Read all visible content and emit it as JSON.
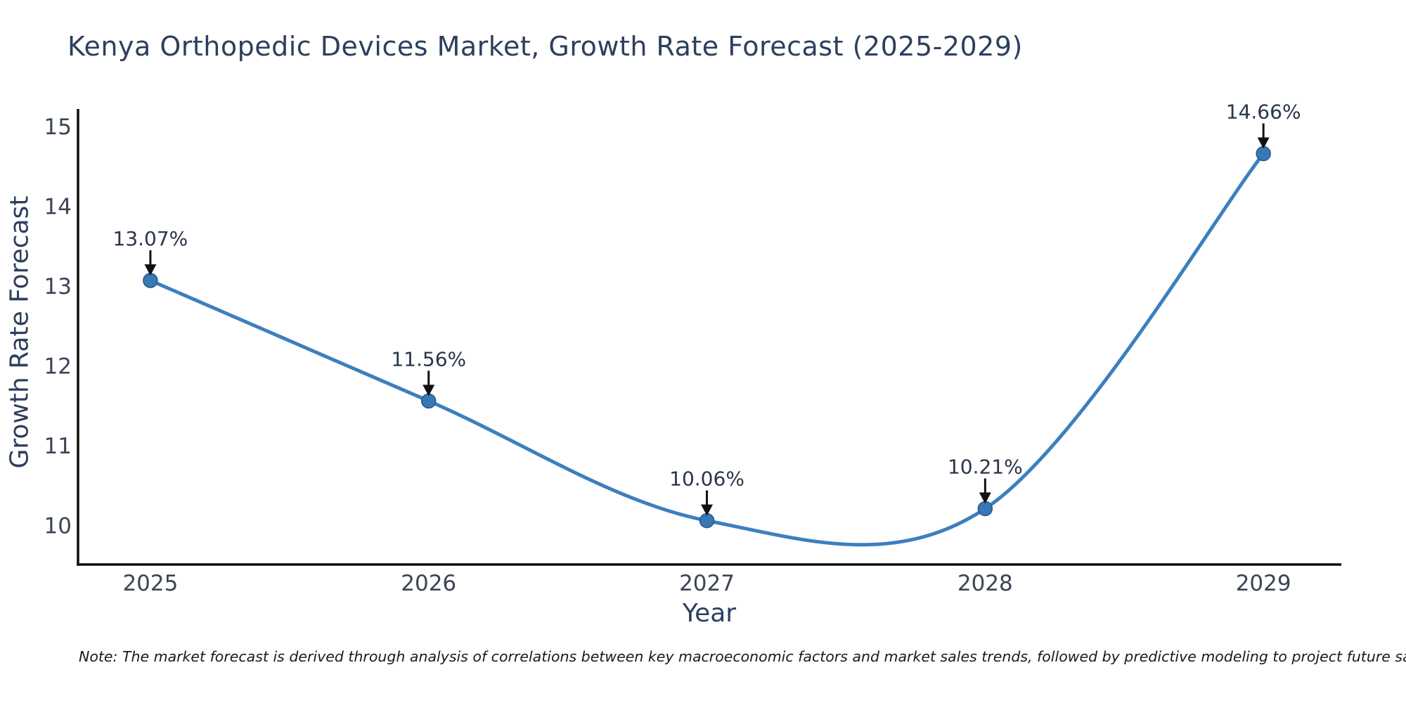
{
  "title": "Kenya Orthopedic Devices Market, Growth Rate Forecast (2025-2029)",
  "note": "Note: The market forecast is derived through analysis of correlations between key macroeconomic factors and market sales trends, followed by predictive modeling to project future sales",
  "chart_data": {
    "type": "line",
    "line_shape": "spline",
    "x": [
      2025,
      2026,
      2027,
      2028,
      2029
    ],
    "values": [
      13.07,
      11.56,
      10.06,
      10.21,
      14.66
    ],
    "point_labels": [
      "13.07%",
      "11.56%",
      "10.06%",
      "10.21%",
      "14.66%"
    ],
    "title": "Kenya Orthopedic Devices Market, Growth Rate Forecast (2025-2029)",
    "xlabel": "Year",
    "ylabel": "Growth Rate Forecast",
    "xticks": [
      "2025",
      "2026",
      "2027",
      "2028",
      "2029"
    ],
    "yticks": [
      10,
      11,
      12,
      13,
      14,
      15
    ],
    "xlim": [
      2024.74,
      2029.28
    ],
    "ylim": [
      9.51,
      15.22
    ],
    "grid": false,
    "legend": "none",
    "annotations": "black down-arrows from each percentage label to its data point",
    "colors": {
      "line": "#3c7fbe",
      "marker_fill": "#3878b4",
      "marker_edge": "#21588a",
      "axis": "#0d0d0d",
      "title_text": "#2d3f5e",
      "tick_text": "#3a4555",
      "annotation_text": "#2a3549",
      "arrow": "#111111",
      "background": "#ffffff"
    }
  }
}
